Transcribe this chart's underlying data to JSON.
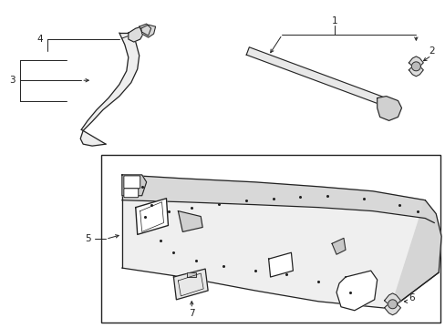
{
  "background_color": "#ffffff",
  "line_color": "#222222",
  "figsize": [
    4.89,
    3.6
  ],
  "dpi": 100
}
